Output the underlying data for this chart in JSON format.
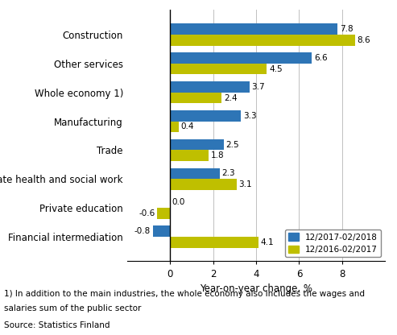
{
  "categories": [
    "Financial intermediation",
    "Private education",
    "Private health and social work",
    "Trade",
    "Manufacturing",
    "Whole economy 1)",
    "Other services",
    "Construction"
  ],
  "series1_label": "12/2017-02/2018",
  "series1_color": "#2E75B6",
  "series1_values": [
    -0.8,
    0.0,
    2.3,
    2.5,
    3.3,
    3.7,
    6.6,
    7.8
  ],
  "series2_label": "12/2016-02/2017",
  "series2_color": "#BFBF00",
  "series2_values": [
    4.1,
    -0.6,
    3.1,
    1.8,
    0.4,
    2.4,
    4.5,
    8.6
  ],
  "xlabel": "Year-on-year change, %",
  "xlim": [
    -2,
    10
  ],
  "xticks": [
    0,
    2,
    4,
    6,
    8
  ],
  "footnote1": "1) In addition to the main industries, the whole economy also includes the wages and",
  "footnote2": "salaries sum of the public sector",
  "source": "Source: Statistics Finland",
  "bar_height": 0.38,
  "grid_color": "#C0C0C0",
  "background_color": "#FFFFFF"
}
